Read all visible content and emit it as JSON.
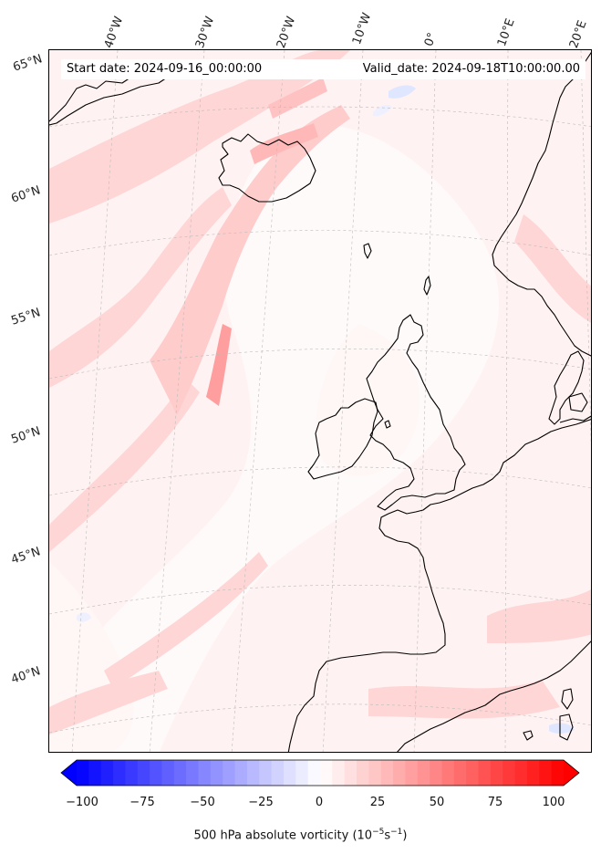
{
  "header": {
    "start_date": "Start date: 2024-09-16_00:00:00",
    "valid_date": "Valid_date: 2024-09-18T10:00:00.00"
  },
  "graticule": {
    "longitude_labels": [
      "40°W",
      "30°W",
      "20°W",
      "10°W",
      "0°",
      "10°E",
      "20°E"
    ],
    "latitude_labels": [
      "65°N",
      "60°N",
      "55°N",
      "50°N",
      "45°N",
      "40°N"
    ]
  },
  "colorbar": {
    "ticks": [
      "−100",
      "−75",
      "−50",
      "−25",
      "0",
      "25",
      "50",
      "75",
      "100"
    ],
    "label_main": "500 hPa absolute vorticity (10",
    "label_exp1": "−5",
    "label_mid": "s",
    "label_exp2": "−1",
    "label_end": ")",
    "min_color": "#0000ff",
    "mid_color": "#ffffff",
    "max_color": "#ff0000",
    "range": [
      -100,
      100
    ]
  },
  "colors": {
    "background_field": "#fff0f0",
    "vorticity_band": "#ffb3b3",
    "coastline": "#000000"
  }
}
